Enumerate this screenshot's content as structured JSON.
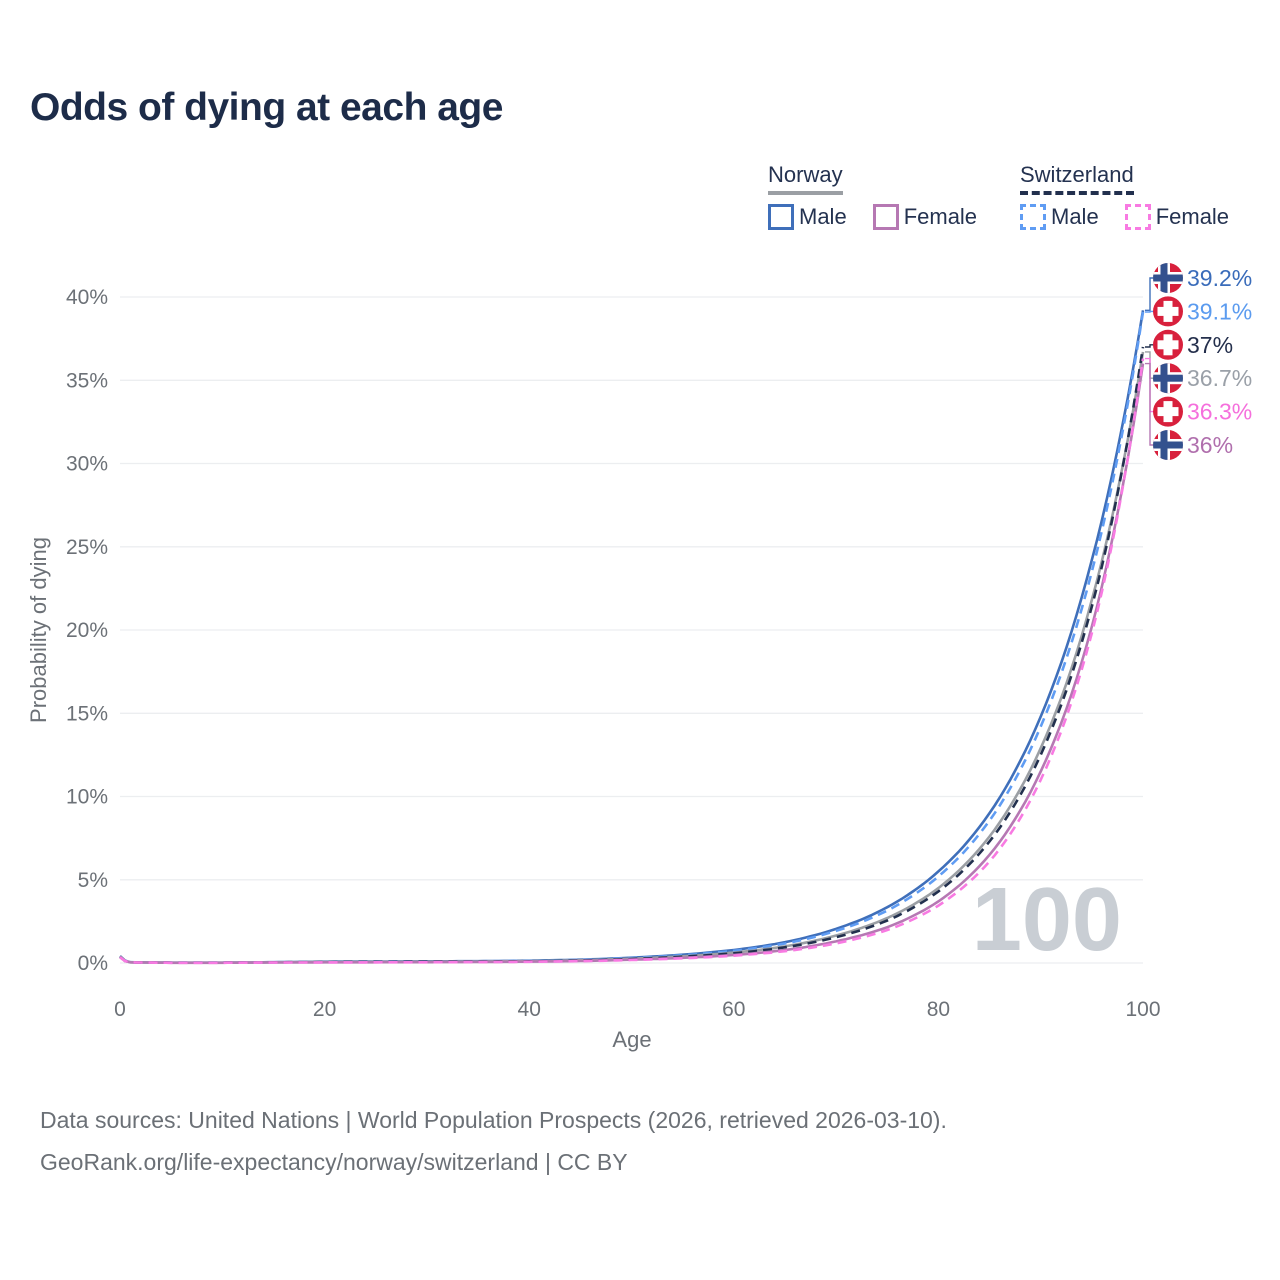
{
  "title": {
    "text": "Odds of dying at each age",
    "color": "#1d2c49"
  },
  "legend": {
    "norway": {
      "label": "Norway",
      "line_color": "#9b9fa4",
      "line_style": "solid",
      "male": {
        "label": "Male",
        "color": "#3f6fba"
      },
      "female": {
        "label": "Female",
        "color": "#b678b3"
      }
    },
    "switzerland": {
      "label": "Switzerland",
      "line_color": "#22304e",
      "line_style": "dashed",
      "male": {
        "label": "Male",
        "color": "#5f9cf3"
      },
      "female": {
        "label": "Female",
        "color": "#f87ae2"
      }
    }
  },
  "watermark": {
    "text": "100",
    "color": "#c9ced4"
  },
  "footer": {
    "line1": "Data sources: United Nations | World Population Prospects (2026, retrieved 2026-03-10).",
    "line2": "GeoRank.org/life-expectancy/norway/switzerland | CC BY"
  },
  "chart_data": {
    "type": "line",
    "title": "Odds of dying at each age",
    "xlabel": "Age",
    "ylabel": "Probability of dying",
    "xlim": [
      0,
      100
    ],
    "ylim": [
      0,
      41
    ],
    "x_ticks": [
      0,
      20,
      40,
      60,
      80,
      100
    ],
    "y_ticks": [
      0,
      5,
      10,
      15,
      20,
      25,
      30,
      35,
      40
    ],
    "y_tick_suffix": "%",
    "grid": "horizontal",
    "grid_color": "#eceef0",
    "axis_text_color": "#6c7177",
    "legend_position": "top-right",
    "series": [
      {
        "id": "norway-male",
        "name": "Norway Male",
        "country": "Norway",
        "sex": "Male",
        "flag": "norway",
        "dash": "solid",
        "color": "#3f6fba",
        "label_color": "#3a6cba",
        "end_label": "39.2%",
        "end_value": 39.2,
        "points": [
          [
            0,
            0.42
          ],
          [
            1,
            0.05
          ],
          [
            5,
            0.02
          ],
          [
            10,
            0.02
          ],
          [
            15,
            0.05
          ],
          [
            20,
            0.08
          ],
          [
            25,
            0.09
          ],
          [
            30,
            0.1
          ],
          [
            35,
            0.11
          ],
          [
            40,
            0.14
          ],
          [
            45,
            0.2
          ],
          [
            50,
            0.32
          ],
          [
            55,
            0.5
          ],
          [
            60,
            0.78
          ],
          [
            65,
            1.25
          ],
          [
            70,
            2.05
          ],
          [
            75,
            3.35
          ],
          [
            80,
            5.5
          ],
          [
            85,
            9.0
          ],
          [
            90,
            14.8
          ],
          [
            95,
            24.2
          ],
          [
            100,
            39.2
          ]
        ]
      },
      {
        "id": "switzerland-male",
        "name": "Switzerland Male",
        "country": "Switzerland",
        "sex": "Male",
        "flag": "swiss",
        "dash": "dashed",
        "color": "#5f9cf3",
        "label_color": "#5b9bef",
        "end_label": "39.1%",
        "end_value": 39.1,
        "points": [
          [
            0,
            0.38
          ],
          [
            1,
            0.04
          ],
          [
            5,
            0.02
          ],
          [
            10,
            0.02
          ],
          [
            15,
            0.04
          ],
          [
            20,
            0.07
          ],
          [
            25,
            0.08
          ],
          [
            30,
            0.09
          ],
          [
            35,
            0.1
          ],
          [
            40,
            0.13
          ],
          [
            45,
            0.19
          ],
          [
            50,
            0.3
          ],
          [
            55,
            0.47
          ],
          [
            60,
            0.73
          ],
          [
            65,
            1.17
          ],
          [
            70,
            1.93
          ],
          [
            75,
            3.15
          ],
          [
            80,
            5.2
          ],
          [
            85,
            8.55
          ],
          [
            90,
            14.2
          ],
          [
            95,
            23.5
          ],
          [
            100,
            39.1
          ]
        ]
      },
      {
        "id": "norway-all",
        "name": "Norway",
        "country": "Norway",
        "sex": "Both",
        "flag": "norway",
        "dash": "solid",
        "color": "#9b9fa4",
        "label_color": "#9aa0a8",
        "end_label": "36.7%",
        "end_value": 36.7,
        "points": [
          [
            0,
            0.4
          ],
          [
            1,
            0.04
          ],
          [
            5,
            0.02
          ],
          [
            10,
            0.02
          ],
          [
            15,
            0.04
          ],
          [
            20,
            0.06
          ],
          [
            25,
            0.07
          ],
          [
            30,
            0.08
          ],
          [
            35,
            0.09
          ],
          [
            40,
            0.11
          ],
          [
            45,
            0.16
          ],
          [
            50,
            0.26
          ],
          [
            55,
            0.4
          ],
          [
            60,
            0.62
          ],
          [
            65,
            1.0
          ],
          [
            70,
            1.65
          ],
          [
            75,
            2.7
          ],
          [
            80,
            4.5
          ],
          [
            85,
            7.6
          ],
          [
            90,
            12.9
          ],
          [
            95,
            21.8
          ],
          [
            100,
            36.7
          ]
        ]
      },
      {
        "id": "switzerland-all",
        "name": "Switzerland",
        "country": "Switzerland",
        "sex": "Both",
        "flag": "swiss",
        "dash": "dashed",
        "color": "#22304e",
        "label_color": "#242f4c",
        "end_label": "37%",
        "end_value": 37.0,
        "points": [
          [
            0,
            0.36
          ],
          [
            1,
            0.04
          ],
          [
            5,
            0.02
          ],
          [
            10,
            0.02
          ],
          [
            15,
            0.04
          ],
          [
            20,
            0.06
          ],
          [
            25,
            0.07
          ],
          [
            30,
            0.08
          ],
          [
            35,
            0.09
          ],
          [
            40,
            0.1
          ],
          [
            45,
            0.15
          ],
          [
            50,
            0.24
          ],
          [
            55,
            0.38
          ],
          [
            60,
            0.58
          ],
          [
            65,
            0.94
          ],
          [
            70,
            1.55
          ],
          [
            75,
            2.55
          ],
          [
            80,
            4.3
          ],
          [
            85,
            7.3
          ],
          [
            90,
            12.5
          ],
          [
            95,
            21.4
          ],
          [
            100,
            37.0
          ]
        ]
      },
      {
        "id": "norway-female",
        "name": "Norway Female",
        "country": "Norway",
        "sex": "Female",
        "flag": "norway",
        "dash": "solid",
        "color": "#b678b3",
        "label_color": "#b06fad",
        "end_label": "36%",
        "end_value": 36.0,
        "points": [
          [
            0,
            0.38
          ],
          [
            1,
            0.04
          ],
          [
            5,
            0.015
          ],
          [
            10,
            0.015
          ],
          [
            15,
            0.03
          ],
          [
            20,
            0.04
          ],
          [
            25,
            0.045
          ],
          [
            30,
            0.05
          ],
          [
            35,
            0.06
          ],
          [
            40,
            0.08
          ],
          [
            45,
            0.12
          ],
          [
            50,
            0.2
          ],
          [
            55,
            0.31
          ],
          [
            60,
            0.48
          ],
          [
            65,
            0.78
          ],
          [
            70,
            1.3
          ],
          [
            75,
            2.15
          ],
          [
            80,
            3.7
          ],
          [
            85,
            6.5
          ],
          [
            90,
            11.5
          ],
          [
            95,
            20.2
          ],
          [
            100,
            36.0
          ]
        ]
      },
      {
        "id": "switzerland-female",
        "name": "Switzerland Female",
        "country": "Switzerland",
        "sex": "Female",
        "flag": "swiss",
        "dash": "dashed",
        "color": "#f87ae2",
        "label_color": "#f56fdc",
        "end_label": "36.3%",
        "end_value": 36.3,
        "points": [
          [
            0,
            0.34
          ],
          [
            1,
            0.035
          ],
          [
            5,
            0.015
          ],
          [
            10,
            0.015
          ],
          [
            15,
            0.025
          ],
          [
            20,
            0.035
          ],
          [
            25,
            0.04
          ],
          [
            30,
            0.045
          ],
          [
            35,
            0.055
          ],
          [
            40,
            0.075
          ],
          [
            45,
            0.11
          ],
          [
            50,
            0.18
          ],
          [
            55,
            0.28
          ],
          [
            60,
            0.44
          ],
          [
            65,
            0.71
          ],
          [
            70,
            1.18
          ],
          [
            75,
            1.98
          ],
          [
            80,
            3.45
          ],
          [
            85,
            6.1
          ],
          [
            90,
            11.0
          ],
          [
            95,
            19.8
          ],
          [
            100,
            36.3
          ]
        ]
      }
    ]
  }
}
